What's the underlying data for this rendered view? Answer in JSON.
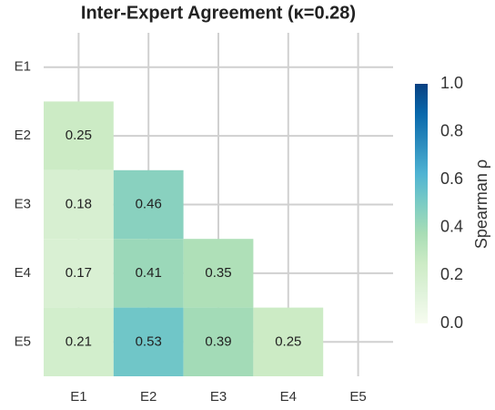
{
  "chart_data": {
    "type": "heatmap",
    "title": "Inter-Expert Agreement (κ=0.28)",
    "x_categories": [
      "E1",
      "E2",
      "E3",
      "E4",
      "E5"
    ],
    "y_categories": [
      "E1",
      "E2",
      "E3",
      "E4",
      "E5"
    ],
    "values": [
      [
        null,
        null,
        null,
        null,
        null
      ],
      [
        0.25,
        null,
        null,
        null,
        null
      ],
      [
        0.18,
        0.46,
        null,
        null,
        null
      ],
      [
        0.17,
        0.41,
        0.35,
        null,
        null
      ],
      [
        0.21,
        0.53,
        0.39,
        0.25,
        null
      ]
    ],
    "colorscale": [
      "#f7fcf0",
      "#e0f3db",
      "#ccebc5",
      "#a8ddb5",
      "#7bccc4",
      "#4eb3d3",
      "#2b8cbe",
      "#0868ac",
      "#084081"
    ],
    "zlim": [
      0,
      1
    ],
    "colorbar_label": "Spearman ρ",
    "colorbar_ticks": [
      {
        "value": 0,
        "label": "0.0"
      },
      {
        "value": 0.2,
        "label": "0.2"
      },
      {
        "value": 0.4,
        "label": "0.4"
      },
      {
        "value": 0.6,
        "label": "0.6"
      },
      {
        "value": 0.8,
        "label": "0.8"
      },
      {
        "value": 1,
        "label": "1.0"
      }
    ],
    "grid": true
  }
}
